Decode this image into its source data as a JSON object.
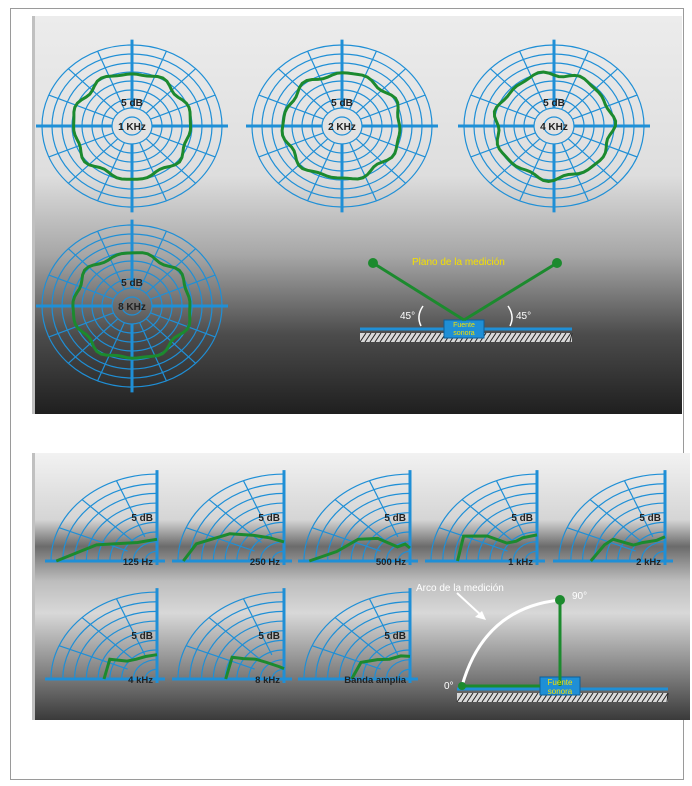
{
  "colors": {
    "grid": "#1f8fd6",
    "pattern": "#1c8a2e",
    "annotation": "#f5e000",
    "arc": "#ffffff"
  },
  "top_figure": {
    "polar_charts": [
      {
        "level_label": "5 dB",
        "freq_label": "1 KHz"
      },
      {
        "level_label": "5 dB",
        "freq_label": "2 KHz"
      },
      {
        "level_label": "5 dB",
        "freq_label": "4 KHz"
      },
      {
        "level_label": "5 dB",
        "freq_label": "8 KHz"
      }
    ],
    "setup": {
      "plane_label": "Plano de la medición",
      "angle_left": "45°",
      "angle_right": "45°",
      "source_line1": "Fuente",
      "source_line2": "sonora"
    }
  },
  "bottom_figure": {
    "quarter_charts": [
      {
        "level_label": "5 dB",
        "freq_label": "125 Hz"
      },
      {
        "level_label": "5 dB",
        "freq_label": "250 Hz"
      },
      {
        "level_label": "5 dB",
        "freq_label": "500 Hz"
      },
      {
        "level_label": "5 dB",
        "freq_label": "1 kHz"
      },
      {
        "level_label": "5 dB",
        "freq_label": "2 kHz"
      },
      {
        "level_label": "5 dB",
        "freq_label": "4 kHz"
      },
      {
        "level_label": "5 dB",
        "freq_label": "8 kHz"
      },
      {
        "level_label": "5 dB",
        "freq_label": "Banda amplia"
      }
    ],
    "setup": {
      "arc_label": "Arco de la medición",
      "angle_start": "0°",
      "angle_end": "90°",
      "source_line1": "Fuente",
      "source_line2": "sonora"
    }
  }
}
